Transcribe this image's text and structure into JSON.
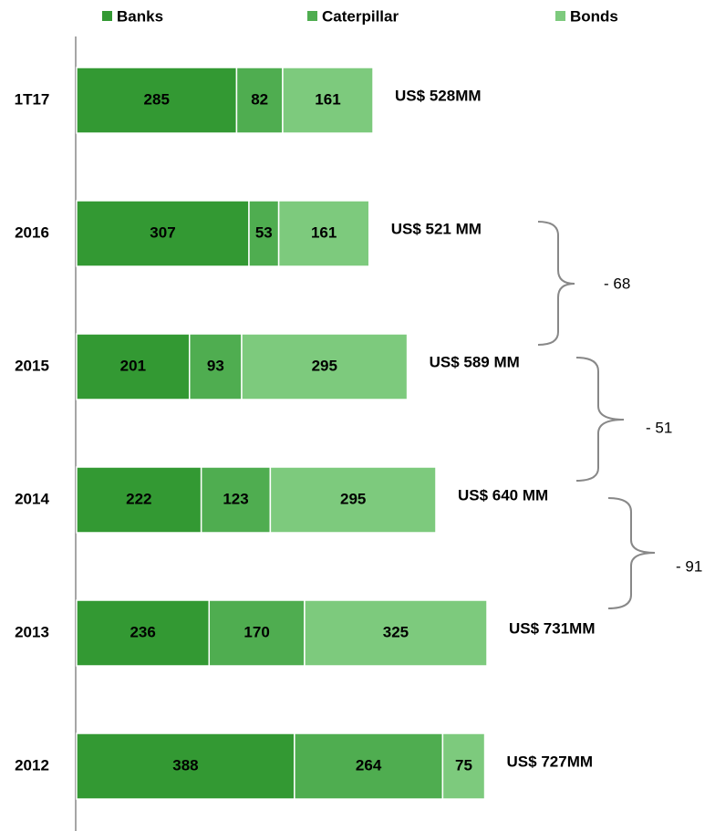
{
  "chart_data": {
    "type": "stacked-barh",
    "categories": [
      "1T17",
      "2016",
      "2015",
      "2014",
      "2013",
      "2012"
    ],
    "series": [
      {
        "name": "Banks",
        "color": "#339933",
        "values": [
          285,
          307,
          201,
          222,
          236,
          388
        ]
      },
      {
        "name": "Caterpillar",
        "color": "#4fad50",
        "values": [
          82,
          53,
          93,
          123,
          170,
          264
        ]
      },
      {
        "name": "Bonds",
        "color": "#7dca7d",
        "values": [
          161,
          161,
          295,
          295,
          325,
          75
        ]
      }
    ],
    "total_labels": [
      "US$ 528MM",
      "US$ 521 MM",
      "US$ 589 MM",
      "US$ 640 MM",
      "US$ 731MM",
      "US$ 727MM"
    ],
    "change_labels": [
      "- 68",
      "- 51",
      "- 91"
    ],
    "legend": "top"
  }
}
